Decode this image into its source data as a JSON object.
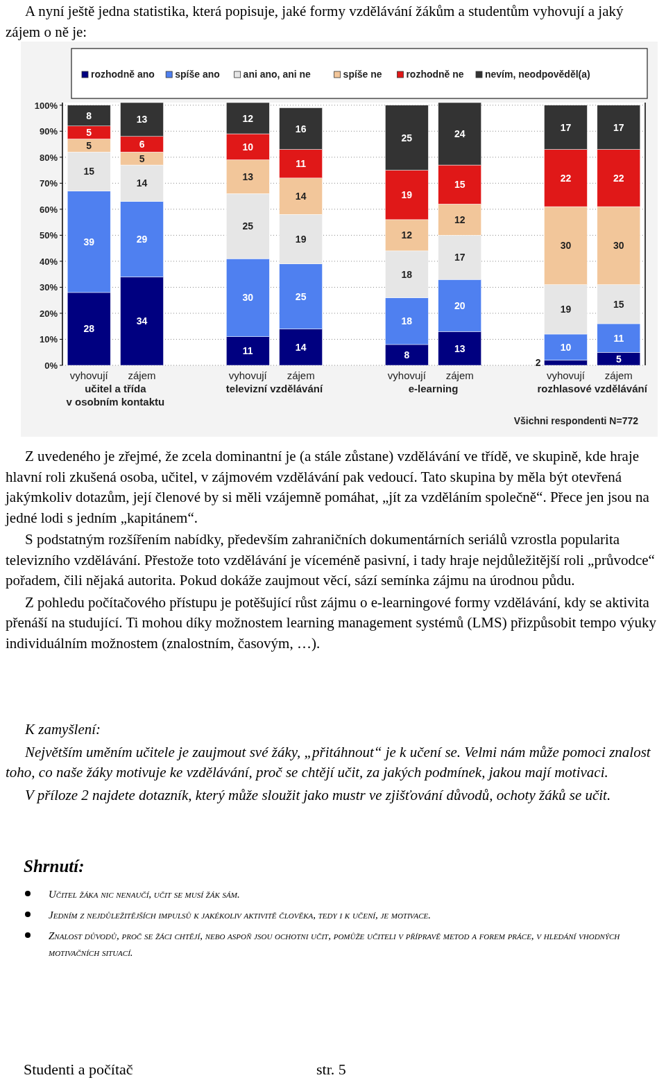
{
  "chart_data": {
    "type": "bar",
    "stacked": true,
    "title": "A nyní ještě jedna statistika, která popisuje, jaké formy vzdělávání žákům a studentům vyhovují a jaký zájem o ně je:",
    "categories": [
      "vyhovují",
      "zájem",
      null,
      "vyhovují",
      "zájem",
      null,
      "vyhovují",
      "zájem",
      null,
      "vyhovují",
      "zájem"
    ],
    "series": [
      {
        "name": "rozhodně ano",
        "color": "#000080",
        "values": [
          28,
          34,
          null,
          11,
          14,
          null,
          8,
          13,
          null,
          2,
          5
        ]
      },
      {
        "name": "spíše ano",
        "color": "#4f80f0",
        "values": [
          39,
          29,
          null,
          30,
          25,
          null,
          18,
          20,
          null,
          10,
          11
        ]
      },
      {
        "name": "ani ano, ani ne",
        "color": "#e6e6e6",
        "values": [
          15,
          14,
          null,
          25,
          19,
          null,
          18,
          17,
          null,
          19,
          15
        ]
      },
      {
        "name": "spíše ne",
        "color": "#f2c69a",
        "values": [
          5,
          5,
          null,
          13,
          14,
          null,
          12,
          12,
          null,
          30,
          30
        ]
      },
      {
        "name": "rozhodně ne",
        "color": "#e01818",
        "values": [
          5,
          6,
          null,
          10,
          11,
          null,
          19,
          15,
          null,
          22,
          22
        ]
      },
      {
        "name": "nevím, neodpověděl(a)",
        "color": "#333333",
        "values": [
          8,
          13,
          null,
          12,
          16,
          null,
          25,
          24,
          null,
          17,
          17
        ]
      }
    ],
    "ylim": [
      0,
      101
    ],
    "yticks": [
      {
        "value": 0,
        "label": "0%"
      },
      {
        "value": 10,
        "label": "10%"
      },
      {
        "value": 20,
        "label": "20%"
      },
      {
        "value": 30,
        "label": "30%"
      },
      {
        "value": 40,
        "label": "40%"
      },
      {
        "value": 50,
        "label": "50%"
      },
      {
        "value": 60,
        "label": "60%"
      },
      {
        "value": 70,
        "label": "70%"
      },
      {
        "value": 80,
        "label": "80%"
      },
      {
        "value": 90,
        "label": "90%"
      },
      {
        "value": 100,
        "label": "100%"
      }
    ],
    "grid": "y",
    "legend": "top",
    "data_labels": true,
    "annotations": [
      "učitel a třída\nv osobním kontaktu",
      "televizní vzdělávání",
      "e-learning",
      "rozhlasové vzdělávání",
      "Všichni respondenti N=772",
      "Z uvedeného je zřejmé, že zcela dominantní je (a stále zůstane) vzdělávání ve třídě, ve skupině, kde hraje hlavní roli zkušená osoba, učitel, v zájmovém vzdělávání pak vedoucí. Tato skupina by měla být otevřená jakýmkoliv dotazům, její členové by si měli vzájemně pomáhat, „jít za vzděláním společně“. Přece jen jsou na jedné lodi s jedním „kapitánem“.",
      "S podstatným rozšířením nabídky, především zahraničních dokumentárních seriálů vzrostla popularita televizního vzdělávání. Přestože toto vzdělávání je víceméně pasivní, i tady hraje nejdůležitější roli „průvodce“ pořadem, čili nějaká autorita. Pokud dokáže zaujmout věcí, sází semínka zájmu na úrodnou půdu.",
      "Z pohledu počítačového přístupu je potěšující růst zájmu o e-learningové formy vzdělávání, kdy se aktivita přenáší na studující. Ti mohou díky možnostem learning management systémů (LMS) přizpůsobit tempo výuky individuálním možnostem (znalostním, časovým, …).",
      "K zamyšlení:",
      "Největším uměním učitele je zaujmout své žáky, „přitáhnout“ je k učení se. Velmi nám může pomoci znalost toho, co naše žáky motivuje ke vzdělávání, proč se chtějí učit, za jakých podmínek, jakou mají motivaci.",
      "V příloze 2 najdete dotazník, který může sloužit jako mustr ve zjišťování důvodů, ochoty žáků se učit.",
      "Shrnutí:",
      "Učitel žáka nic nenaučí, učit se musí žák sám.",
      "Jedním z nejdůležitějších impulsů k jakékoliv aktivitě člověka, tedy i k učení, je motivace.",
      "Znalost důvodů, proč se žáci chtějí, nebo aspoň jsou ochotni učit, pomůže učiteli v přípravě metod a forem práce, v hledání vhodných motivačních situací.",
      "Studenti a počítač",
      "str. 5"
    ]
  }
}
